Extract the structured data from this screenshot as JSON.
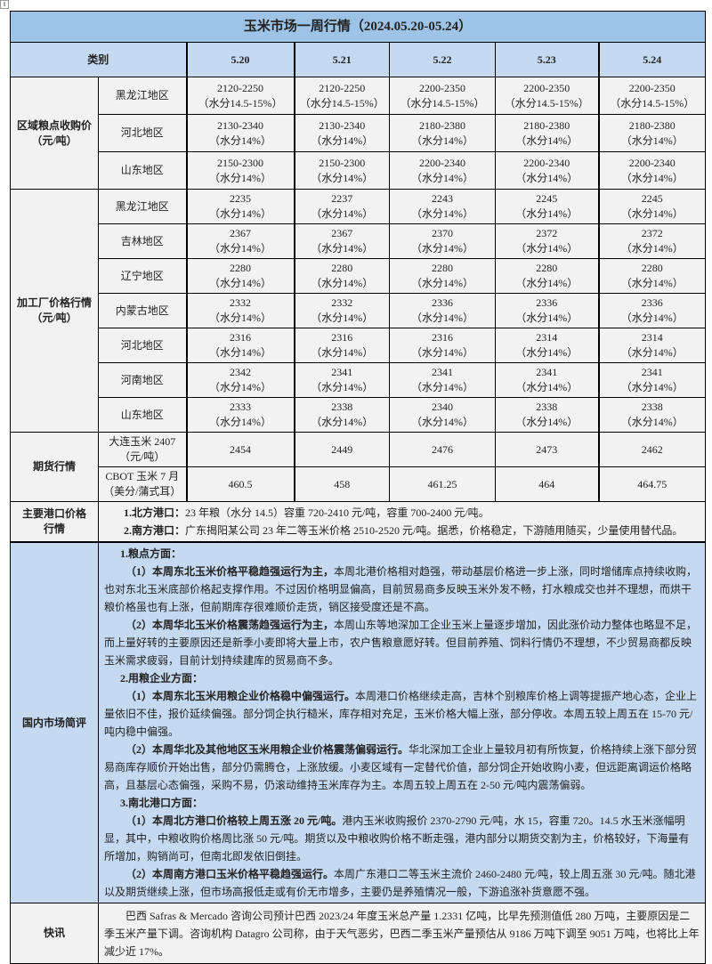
{
  "title": "玉米市场一周行情（2024.05.20-05.24）",
  "header": {
    "category": "类别",
    "dates": [
      "5.20",
      "5.21",
      "5.22",
      "5.23",
      "5.24"
    ]
  },
  "regional": {
    "label": "区域粮点收购价",
    "unit": "（元/吨）",
    "rows": [
      {
        "region": "黑龙江地区",
        "values": [
          [
            "2120-2250",
            "（水分14.5-15%）"
          ],
          [
            "2120-2250",
            "（水分14.5-15%）"
          ],
          [
            "2200-2350",
            "（水分14.5-15%）"
          ],
          [
            "2200-2350",
            "（水分14.5-15%）"
          ],
          [
            "2200-2350",
            "（水分14.5-15%）"
          ]
        ]
      },
      {
        "region": "河北地区",
        "values": [
          [
            "2130-2340",
            "（水分14%）"
          ],
          [
            "2130-2340",
            "（水分14%）"
          ],
          [
            "2180-2380",
            "（水分14%）"
          ],
          [
            "2180-2380",
            "（水分14%）"
          ],
          [
            "2180-2380",
            "（水分14%）"
          ]
        ]
      },
      {
        "region": "山东地区",
        "values": [
          [
            "2150-2300",
            "（水分14%）"
          ],
          [
            "2150-2300",
            "（水分14%）"
          ],
          [
            "2200-2340",
            "（水分14%）"
          ],
          [
            "2200-2340",
            "（水分14%）"
          ],
          [
            "2200-2340",
            "（水分14%）"
          ]
        ]
      }
    ]
  },
  "processing": {
    "label": "加工厂价格行情",
    "unit": "（元/吨）",
    "moisture": "（水分14%）",
    "rows": [
      {
        "region": "黑龙江地区",
        "values": [
          "2235",
          "2237",
          "2243",
          "2245",
          "2245"
        ]
      },
      {
        "region": "吉林地区",
        "values": [
          "2367",
          "2367",
          "2370",
          "2372",
          "2372"
        ]
      },
      {
        "region": "辽宁地区",
        "values": [
          "2280",
          "2280",
          "2280",
          "2280",
          "2280"
        ]
      },
      {
        "region": "内蒙古地区",
        "values": [
          "2332",
          "2332",
          "2336",
          "2336",
          "2336"
        ]
      },
      {
        "region": "河北地区",
        "values": [
          "2316",
          "2316",
          "2316",
          "2314",
          "2314"
        ]
      },
      {
        "region": "河南地区",
        "values": [
          "2342",
          "2341",
          "2341",
          "2341",
          "2341"
        ]
      },
      {
        "region": "山东地区",
        "values": [
          "2333",
          "2338",
          "2340",
          "2338",
          "2338"
        ]
      }
    ]
  },
  "futures": {
    "label": "期货行情",
    "rows": [
      {
        "name": "大连玉米 2407",
        "unit": "（元/吨）",
        "values": [
          "2454",
          "2449",
          "2476",
          "2473",
          "2462"
        ]
      },
      {
        "name": "CBOT 玉米 7 月",
        "unit": "（美分/蒲式耳）",
        "values": [
          "460.5",
          "458",
          "461.25",
          "464",
          "464.75"
        ]
      }
    ]
  },
  "ports": {
    "label": "主要港口价格行情",
    "north_lead": "1.北方港口：",
    "north": "23 年粮（水分 14.5）容重 720-2410 元/吨，容重 700-2400 元/吨。",
    "south_lead": "2.南方港口：",
    "south": "广东揭阳某公司 23 年二等玉米价格 2510-2520 元/吨。据悉，价格稳定，下游随用随买，少量使用替代品。"
  },
  "domestic": {
    "label": "国内市场简评",
    "s1": "1.粮点方面：",
    "p1_lead": "（1）本周东北玉米价格平稳趋强运行为主，",
    "p1": "本周北港价格相对趋强，带动基层价格进一步上涨，同时增储库点持续收购，也对东北玉米底部价格起支撑作用。不过因价格明显偏高，目前贸易商多反映玉米外发不畅，打水粮成交也并不理想，而烘干粮价格虽也有上涨，但前期库存很难顺价走货，销区接受度还是不高。",
    "p2_lead": "（2）本周华北玉米价格震荡趋强运行为主，",
    "p2": "本周山东等地深加工企业玉米上量逐步增加，因此涨价动力整体也略显不足，而上量好转的主要原因还是新季小麦即将大量上市，农户售粮意愿好转。但目前养殖、饲料行情仍不理想，不少贸易商都反映玉米需求疲弱，目前计划持续建库的贸易商不多。",
    "s2": "2.用粮企业方面：",
    "p3_lead": "（1）本周东北玉米用粮企业价格稳中偏强运行。",
    "p3": "本周港口价格继续走高，吉林个别粮库价格上调等提振产地心态，企业上量依旧不佳，报价延续偏强。部分饲企执行糙米，库存相对充足，玉米价格大幅上涨，部分停收。本周五较上周五在 15-70 元/吨内稳中偏强。",
    "p4_lead": "（2）本周华北及其他地区玉米用粮企业价格震荡偏弱运行。",
    "p4": "华北深加工企业上量较月初有所恢复，价格持续上涨下部分贸易商库存顺价开始出售，部分仍需腾仓，上涨放缓。小麦区域有一定替代价值，部分饲企开始收购小麦，但远距离调运价格略高，且基层心态偏强，采购不易，仍滚动维持玉米库存为主。本周五较上周五在 2-50 元/吨内震荡偏弱。",
    "s3": "3.南北港口方面：",
    "p5_lead": "（1）本周北方港口价格较上周五涨 20 元/吨。",
    "p5": "港内玉米收购报价 2370-2790 元/吨，水 15，容重 720。14.5 水玉米涨幅明显，其中，中粮收购价格周比涨 50 元/吨。期货以及中粮收购价格不断走强，港内部分以期货交割为主，价格较好，下海量有所增加，购销尚可，但南北即发依旧倒挂。",
    "p6_lead": "（2）本周南方港口玉米价格平稳趋强运行。",
    "p6": "本周广东港口二等玉米主流价 2460-2480 元/吨，较上周五涨 30 元/吨。随北港以及期货继续上涨，但市场高报低走或有价无市增多，主要仍是养殖情况一般，下游追涨补货意愿不强。"
  },
  "news": {
    "label": "快讯",
    "text": "巴西 Safras & Mercado 咨询公司预计巴西 2023/24 年度玉米总产量 1.2331 亿吨，比早先预测值低 280 万吨，主要原因是二季玉米产量下调。咨询机构 Datagro 公司称，由于天气恶劣，巴西二季玉米产量预估从 9186 万吨下调至 9051 万吨，也将比上年减少近 17%。"
  },
  "colors": {
    "title_bg": "#9dc3e6",
    "header_bg": "#c5d9f1",
    "cell_bg": "#f2f2f2",
    "commentary_bg": "#c5d9f1"
  }
}
